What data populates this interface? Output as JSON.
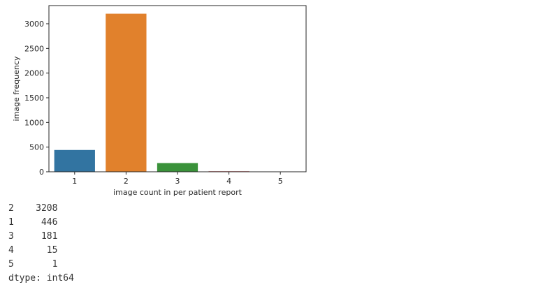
{
  "chart_data": {
    "type": "bar",
    "categories": [
      "1",
      "2",
      "3",
      "4",
      "5"
    ],
    "values": [
      446,
      3208,
      181,
      15,
      1
    ],
    "colors": [
      "#3274a1",
      "#e1812c",
      "#3a923a",
      "#c03d3e",
      "#9372b2"
    ],
    "xlabel": "image count in per patient report",
    "ylabel": "image frequency",
    "ylim": [
      0,
      3368
    ],
    "yticks": [
      0,
      500,
      1000,
      1500,
      2000,
      2500,
      3000
    ],
    "grid": false
  },
  "output": {
    "lines": [
      "2    3208",
      "1     446",
      "3     181",
      "4      15",
      "5       1",
      "dtype: int64"
    ]
  }
}
